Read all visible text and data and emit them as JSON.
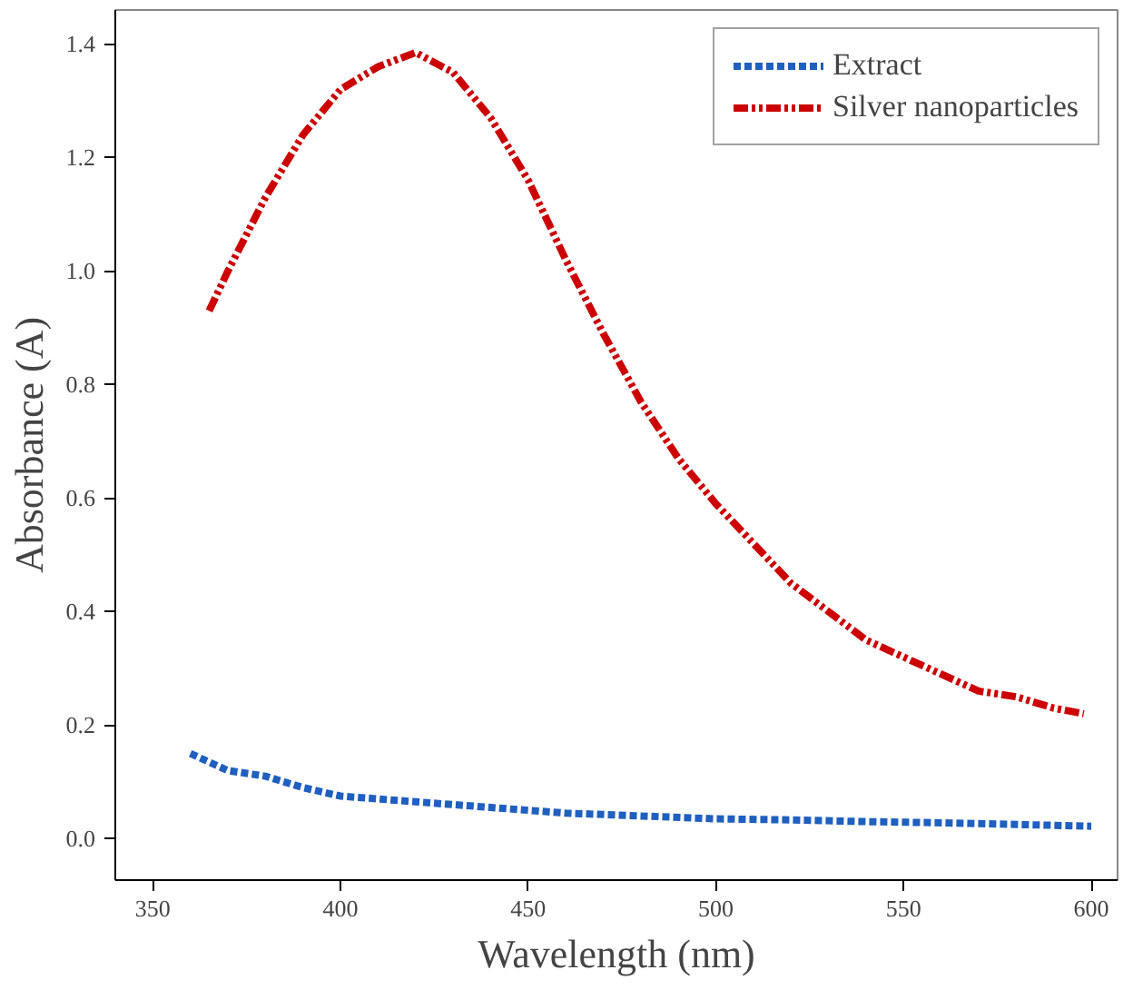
{
  "chart_data": {
    "type": "line",
    "xlabel": "Wavelength (nm)",
    "ylabel": "Absorbance (A)",
    "xlim": [
      340,
      607
    ],
    "ylim": [
      -0.073,
      1.46
    ],
    "xticks": [
      350,
      400,
      450,
      500,
      550,
      600
    ],
    "yticks": [
      {
        "value": 0,
        "label": "0.0"
      },
      {
        "value": 0.2,
        "label": "0.2"
      },
      {
        "value": 0.4,
        "label": "0.4"
      },
      {
        "value": 0.6,
        "label": "0.6"
      },
      {
        "value": 0.8,
        "label": "0.8"
      },
      {
        "value": 1.0,
        "label": "1.0"
      },
      {
        "value": 1.2,
        "label": "1.2"
      },
      {
        "value": 1.4,
        "label": "1.4"
      }
    ],
    "grid": false,
    "legend": "top right",
    "marker": "none",
    "series": [
      {
        "name": "Extract",
        "color": "#1f5fbf",
        "line_style": "dashed",
        "x": [
          360,
          370,
          380,
          390,
          400,
          420,
          440,
          460,
          480,
          500,
          520,
          540,
          560,
          580,
          600
        ],
        "values": [
          0.15,
          0.12,
          0.11,
          0.09,
          0.075,
          0.065,
          0.055,
          0.045,
          0.04,
          0.035,
          0.033,
          0.03,
          0.028,
          0.025,
          0.022
        ]
      },
      {
        "name": "Silver nanoparticles",
        "color": "#cc0000",
        "line_style": "dotted",
        "x": [
          365,
          370,
          380,
          390,
          400,
          410,
          420,
          430,
          440,
          450,
          460,
          470,
          480,
          490,
          500,
          510,
          520,
          530,
          540,
          550,
          560,
          570,
          580,
          590,
          598
        ],
        "values": [
          0.93,
          1.0,
          1.13,
          1.24,
          1.32,
          1.36,
          1.385,
          1.35,
          1.27,
          1.16,
          1.02,
          0.89,
          0.77,
          0.67,
          0.59,
          0.52,
          0.45,
          0.4,
          0.35,
          0.32,
          0.29,
          0.26,
          0.25,
          0.23,
          0.22
        ]
      }
    ]
  }
}
